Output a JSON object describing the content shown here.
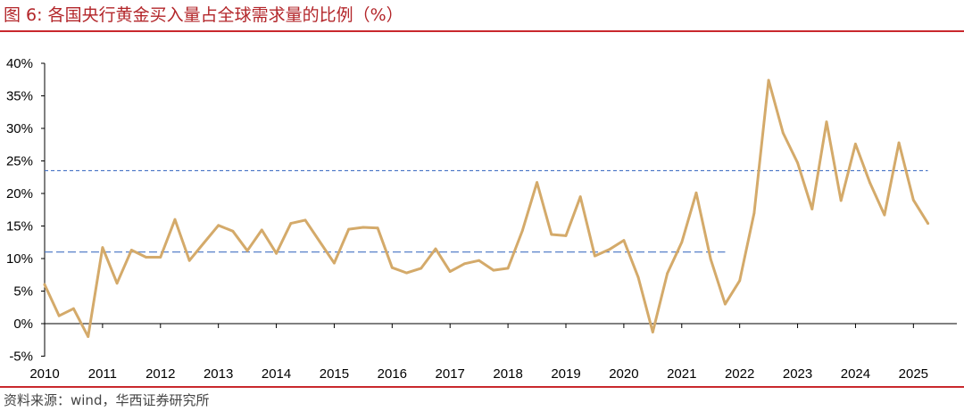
{
  "title": "图 6: 各国央行黄金买入量占全球需求量的比例（%）",
  "source": "资料来源：wind，华西证券研究所",
  "chart_data": {
    "type": "line",
    "title": "图 6: 各国央行黄金买入量占全球需求量的比例（%）",
    "xlabel": "",
    "ylabel": "",
    "ylim": [
      -5,
      40
    ],
    "y_ticks": [
      "-5%",
      "0%",
      "5%",
      "10%",
      "15%",
      "20%",
      "25%",
      "30%",
      "35%",
      "40%"
    ],
    "x_ticks": [
      "2010",
      "2011",
      "2012",
      "2013",
      "2014",
      "2015",
      "2016",
      "2017",
      "2018",
      "2019",
      "2020",
      "2021",
      "2022",
      "2023",
      "2024",
      "2025"
    ],
    "grid": false,
    "series": [
      {
        "color": "#d4aa6a",
        "x": [
          "2010Q1",
          "2010Q2",
          "2010Q3",
          "2010Q4",
          "2011Q1",
          "2011Q2",
          "2011Q3",
          "2011Q4",
          "2012Q1",
          "2012Q2",
          "2012Q3",
          "2012Q4",
          "2013Q1",
          "2013Q2",
          "2013Q3",
          "2013Q4",
          "2014Q1",
          "2014Q2",
          "2014Q3",
          "2014Q4",
          "2015Q1",
          "2015Q2",
          "2015Q3",
          "2015Q4",
          "2016Q1",
          "2016Q2",
          "2016Q3",
          "2016Q4",
          "2017Q1",
          "2017Q2",
          "2017Q3",
          "2017Q4",
          "2018Q1",
          "2018Q2",
          "2018Q3",
          "2018Q4",
          "2019Q1",
          "2019Q2",
          "2019Q3",
          "2019Q4",
          "2020Q1",
          "2020Q2",
          "2020Q3",
          "2020Q4",
          "2021Q1",
          "2021Q2",
          "2021Q3",
          "2021Q4",
          "2022Q1",
          "2022Q2",
          "2022Q3",
          "2022Q4",
          "2023Q1",
          "2023Q2",
          "2023Q3",
          "2023Q4",
          "2024Q1",
          "2024Q2",
          "2024Q3",
          "2024Q4",
          "2025Q1",
          "2025Q2"
        ],
        "values": [
          6.0,
          1.2,
          2.3,
          -2.0,
          11.7,
          6.2,
          11.3,
          10.2,
          10.2,
          16.0,
          9.7,
          12.4,
          15.1,
          14.2,
          11.2,
          14.4,
          10.8,
          15.4,
          15.9,
          12.6,
          9.3,
          14.5,
          14.8,
          14.7,
          8.6,
          7.8,
          8.5,
          11.5,
          8.0,
          9.2,
          9.7,
          8.2,
          8.5,
          14.3,
          21.7,
          13.7,
          13.5,
          19.5,
          10.4,
          11.4,
          12.8,
          7.1,
          -1.3,
          7.7,
          12.5,
          20.1,
          9.9,
          3.0,
          6.6,
          17.0,
          37.4,
          29.3,
          24.7,
          17.6,
          31.0,
          18.9,
          27.6,
          21.6,
          16.7,
          27.8,
          19.0,
          15.4
        ]
      }
    ],
    "reference_lines": [
      {
        "from": "2010Q1",
        "to": "2021Q4",
        "value": 11.0,
        "color": "#4472c4"
      },
      {
        "from": "2010Q1",
        "to": "2025Q2",
        "value": 23.5,
        "color": "#4472c4"
      }
    ]
  }
}
